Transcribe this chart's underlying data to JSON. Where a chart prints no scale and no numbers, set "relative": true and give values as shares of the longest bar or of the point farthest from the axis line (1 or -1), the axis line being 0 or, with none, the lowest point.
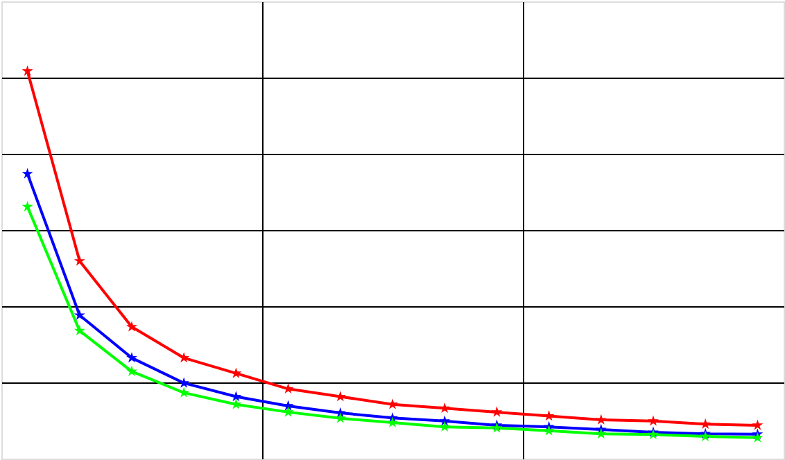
{
  "chart_data": {
    "type": "line",
    "relative": true,
    "categories": [
      null,
      null,
      null,
      null,
      null,
      null,
      null,
      null,
      null,
      null,
      null,
      null,
      null,
      null,
      null
    ],
    "series": [
      {
        "color": "#ff0000",
        "values": [
          1,
          0.51,
          0.34,
          0.26,
          0.22,
          0.18,
          0.16,
          0.14,
          0.13,
          0.12,
          0.11,
          0.1,
          0.097,
          0.089,
          0.086
        ]
      },
      {
        "color": "#0000ff",
        "values": [
          0.735,
          0.37,
          0.26,
          0.195,
          0.16,
          0.136,
          0.118,
          0.105,
          0.097,
          0.086,
          0.082,
          0.075,
          0.068,
          0.064,
          0.063
        ]
      },
      {
        "color": "#00ff00",
        "values": [
          0.65,
          0.33,
          0.225,
          0.17,
          0.14,
          0.12,
          0.104,
          0.093,
          0.082,
          0.079,
          0.072,
          0.064,
          0.062,
          0.057,
          0.054
        ]
      }
    ],
    "grid": true,
    "marker": "star",
    "line_style": "solid",
    "tick_labels": false
  }
}
